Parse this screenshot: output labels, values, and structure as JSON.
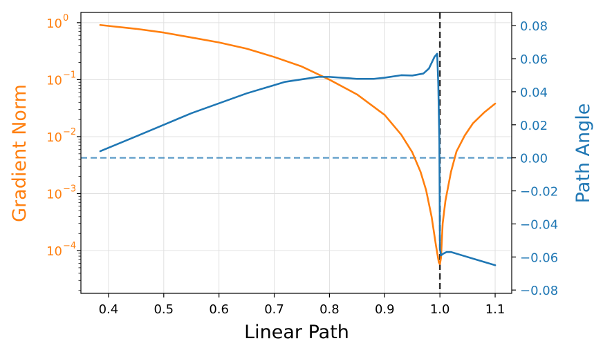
{
  "chart_data": {
    "type": "line",
    "xlabel": "Linear Path",
    "ylabel_left": "Gradient Norm",
    "ylabel_right": "Path Angle",
    "xlim": [
      0.35,
      1.13
    ],
    "ylim_left_log10": [
      -4.75,
      0.18
    ],
    "ylim_right": [
      -0.082,
      0.088
    ],
    "x_ticks": [
      0.4,
      0.5,
      0.6,
      0.7,
      0.8,
      0.9,
      1.0,
      1.1
    ],
    "x_tick_labels": [
      "0.4",
      "0.5",
      "0.6",
      "0.7",
      "0.8",
      "0.9",
      "1.0",
      "1.1"
    ],
    "y_left_ticks_exp": [
      0,
      -1,
      -2,
      -3,
      -4
    ],
    "y_left_tick_labels": [
      {
        "base": "10",
        "exp": "0"
      },
      {
        "base": "10",
        "exp": "−1"
      },
      {
        "base": "10",
        "exp": "−2"
      },
      {
        "base": "10",
        "exp": "−3"
      },
      {
        "base": "10",
        "exp": "−4"
      }
    ],
    "y_right_ticks": [
      0.08,
      0.06,
      0.04,
      0.02,
      0.0,
      -0.02,
      -0.04,
      -0.06,
      -0.08
    ],
    "y_right_tick_labels": [
      "0.08",
      "0.06",
      "0.04",
      "0.02",
      "0.00",
      "−0.02",
      "−0.04",
      "−0.06",
      "−0.08"
    ],
    "grid": true,
    "scale_left": "log",
    "series": [
      {
        "axis": "left",
        "color": "#ff7f0e",
        "style": "solid",
        "x": [
          0.385,
          0.45,
          0.5,
          0.55,
          0.6,
          0.65,
          0.7,
          0.75,
          0.8,
          0.85,
          0.9,
          0.93,
          0.95,
          0.965,
          0.975,
          0.985,
          0.993,
          0.998,
          1.0,
          1.002,
          1.005,
          1.01,
          1.02,
          1.03,
          1.045,
          1.06,
          1.08,
          1.1
        ],
        "y": [
          0.91,
          0.78,
          0.67,
          0.55,
          0.45,
          0.35,
          0.25,
          0.17,
          0.1,
          0.055,
          0.024,
          0.0108,
          0.0053,
          0.0024,
          0.00115,
          0.00039,
          0.00012,
          6.2e-05,
          5.8e-05,
          7.5e-05,
          0.0003,
          0.00075,
          0.0024,
          0.0055,
          0.0105,
          0.0172,
          0.0265,
          0.038
        ]
      },
      {
        "axis": "right",
        "color": "#1f77b4",
        "style": "solid",
        "x": [
          0.385,
          0.45,
          0.5,
          0.55,
          0.6,
          0.65,
          0.7,
          0.72,
          0.75,
          0.78,
          0.8,
          0.85,
          0.88,
          0.9,
          0.93,
          0.95,
          0.97,
          0.98,
          0.99,
          0.995,
          0.997,
          0.999,
          1.0,
          1.002,
          1.006,
          1.012,
          1.02,
          1.04,
          1.06,
          1.08,
          1.1
        ],
        "y": [
          0.004,
          0.013,
          0.02,
          0.027,
          0.033,
          0.039,
          0.044,
          0.046,
          0.0475,
          0.049,
          0.049,
          0.0478,
          0.0478,
          0.0485,
          0.05,
          0.0498,
          0.051,
          0.054,
          0.061,
          0.063,
          0.045,
          0.01,
          -0.055,
          -0.059,
          -0.058,
          -0.057,
          -0.057,
          -0.059,
          -0.061,
          -0.063,
          -0.065
        ]
      }
    ],
    "reference_lines": [
      {
        "orientation": "horizontal",
        "axis": "right",
        "value": 0.0,
        "color": "#1f77b4",
        "style": "dashed",
        "opacity": 0.75
      },
      {
        "orientation": "vertical",
        "value": 1.0,
        "color": "#333333",
        "style": "dashed"
      }
    ],
    "colors": {
      "left_axis": "#ff7f0e",
      "right_axis": "#1f77b4",
      "frame": "#000000",
      "grid": "#e0e0e0"
    }
  }
}
